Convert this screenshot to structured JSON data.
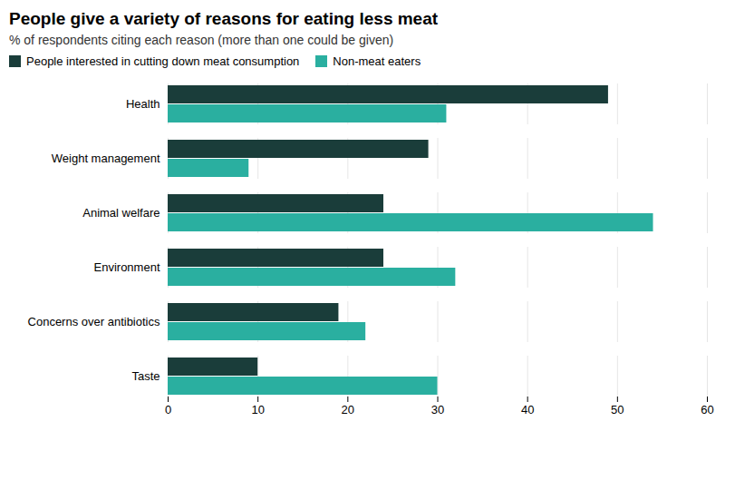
{
  "chart_data": {
    "type": "bar",
    "orientation": "horizontal",
    "title": "People give a variety of reasons for eating less meat",
    "subtitle": "% of respondents citing each reason (more than one could be given)",
    "categories": [
      "Health",
      "Weight management",
      "Animal welfare",
      "Environment",
      "Concerns over antibiotics",
      "Taste"
    ],
    "series": [
      {
        "name": "People interested in cutting down meat consumption",
        "color": "#1a3d3a",
        "values": [
          49,
          29,
          24,
          24,
          19,
          10
        ]
      },
      {
        "name": "Non-meat eaters",
        "color": "#2aafa0",
        "values": [
          31,
          9,
          54,
          32,
          22,
          30
        ]
      }
    ],
    "xlim": [
      0,
      60
    ],
    "xticks": [
      0,
      10,
      20,
      30,
      40,
      50,
      60
    ],
    "grid": true,
    "legend": "top"
  }
}
